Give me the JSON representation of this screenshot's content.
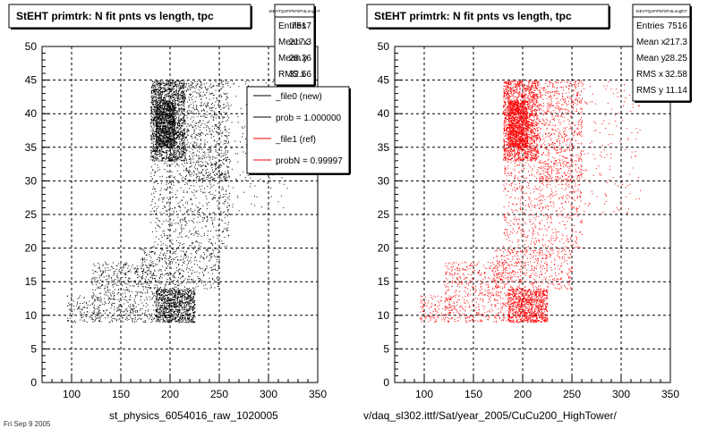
{
  "chart_data": [
    {
      "type": "scatter",
      "title": "StEHT primtrk: N fit pnts vs length, tpc",
      "xlim": [
        70,
        350
      ],
      "ylim": [
        0,
        50
      ],
      "xticks": [
        "100",
        "150",
        "200",
        "250",
        "300",
        "350"
      ],
      "yticks": [
        "0",
        "5",
        "10",
        "15",
        "20",
        "25",
        "30",
        "35",
        "40",
        "45",
        "50"
      ],
      "grid": true,
      "point_color": "#000000",
      "series": [
        {
          "name": "_file0 (new)",
          "clusters": [
            {
              "x": [
                180,
                215
              ],
              "y": [
                33,
                45
              ],
              "n": 1800
            },
            {
              "x": [
                185,
                205
              ],
              "y": [
                35,
                42
              ],
              "n": 900
            },
            {
              "x": [
                215,
                260
              ],
              "y": [
                30,
                45
              ],
              "n": 700
            },
            {
              "x": [
                180,
                260
              ],
              "y": [
                20,
                33
              ],
              "n": 600
            },
            {
              "x": [
                170,
                250
              ],
              "y": [
                14,
                20
              ],
              "n": 450
            },
            {
              "x": [
                185,
                225
              ],
              "y": [
                9,
                14
              ],
              "n": 1000
            },
            {
              "x": [
                120,
                185
              ],
              "y": [
                9,
                18
              ],
              "n": 550
            },
            {
              "x": [
                95,
                130
              ],
              "y": [
                9,
                13
              ],
              "n": 120
            },
            {
              "x": [
                255,
                320
              ],
              "y": [
                25,
                45
              ],
              "n": 150
            }
          ]
        }
      ],
      "stats": {
        "name": "StEHTQaPrPkFitPntLengthT",
        "rows": [
          {
            "label": "Entries",
            "value": "7517"
          },
          {
            "label": "Mean x",
            "value": "217.3"
          },
          {
            "label": "Mean y",
            "value": "28.26"
          },
          {
            "label": "RMS x",
            "value": "32.56"
          }
        ]
      },
      "legend": {
        "items": [
          {
            "label": "_file0 (new)",
            "color": "#000000"
          },
          {
            "label": "prob = 1.000000",
            "color": "#000000"
          },
          {
            "label": "_file1 (ref)",
            "color": "#ff0000"
          },
          {
            "label": "probN = 0.99997",
            "color": "#ff0000"
          }
        ]
      },
      "footer": "st_physics_6054016_raw_1020005"
    },
    {
      "type": "scatter",
      "title": "StEHT primtrk: N fit pnts vs length, tpc",
      "xlim": [
        70,
        350
      ],
      "ylim": [
        0,
        50
      ],
      "xticks": [
        "100",
        "150",
        "200",
        "250",
        "300",
        "350"
      ],
      "yticks": [
        "0",
        "5",
        "10",
        "15",
        "20",
        "25",
        "30",
        "35",
        "40",
        "45",
        "50"
      ],
      "grid": true,
      "point_color": "#ff0000",
      "series": [
        {
          "name": "_file1 (ref)",
          "clusters": [
            {
              "x": [
                180,
                215
              ],
              "y": [
                33,
                45
              ],
              "n": 1800
            },
            {
              "x": [
                185,
                205
              ],
              "y": [
                35,
                42
              ],
              "n": 900
            },
            {
              "x": [
                215,
                260
              ],
              "y": [
                30,
                45
              ],
              "n": 700
            },
            {
              "x": [
                180,
                260
              ],
              "y": [
                20,
                33
              ],
              "n": 600
            },
            {
              "x": [
                170,
                250
              ],
              "y": [
                14,
                20
              ],
              "n": 450
            },
            {
              "x": [
                185,
                225
              ],
              "y": [
                9,
                14
              ],
              "n": 1000
            },
            {
              "x": [
                120,
                185
              ],
              "y": [
                9,
                18
              ],
              "n": 550
            },
            {
              "x": [
                95,
                130
              ],
              "y": [
                9,
                13
              ],
              "n": 120
            },
            {
              "x": [
                255,
                320
              ],
              "y": [
                25,
                45
              ],
              "n": 150
            }
          ]
        }
      ],
      "stats": {
        "name": "StEHTQaPrPkFitPntLengthT",
        "rows": [
          {
            "label": "Entries",
            "value": "7516"
          },
          {
            "label": "Mean x",
            "value": "217.3"
          },
          {
            "label": "Mean y",
            "value": "28.25"
          },
          {
            "label": "RMS x",
            "value": "32.58"
          },
          {
            "label": "RMS y",
            "value": "11.14"
          }
        ]
      },
      "footer": "v/daq_sl302.ittf/Sat/year_2005/CuCu200_HighTower/"
    }
  ],
  "corner_note": "Fri Sep 9 2005"
}
